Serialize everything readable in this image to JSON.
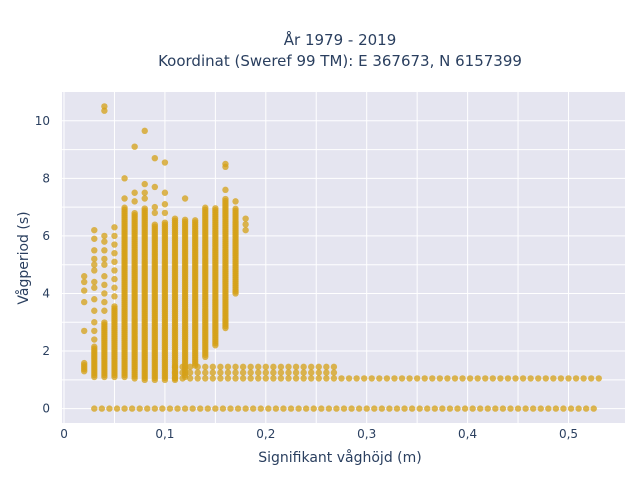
{
  "chart_data": {
    "type": "scatter",
    "title": [
      "År 1979 - 2019",
      "Koordinat (Sweref 99 TM): E 367673, N 6157399"
    ],
    "xlabel": "Signifikant våghöjd (m)",
    "ylabel": "Vågperiod (s)",
    "xlim": [
      -0.002,
      0.556
    ],
    "ylim": [
      -0.5,
      11
    ],
    "xticks": [
      0,
      0.1,
      0.2,
      0.3,
      0.4,
      0.5
    ],
    "xtick_labels": [
      "0",
      "0,1",
      "0,2",
      "0,3",
      "0,4",
      "0,5"
    ],
    "yticks": [
      0,
      2,
      4,
      6,
      8,
      10
    ],
    "ytick_labels": [
      "0",
      "2",
      "4",
      "6",
      "8",
      "10"
    ],
    "grid": true,
    "colors": {
      "background": "#E5E5F0",
      "grid": "#FFFFFF",
      "marker": "#D4A017"
    },
    "series": [
      {
        "marker_opacity": 0.75,
        "bands": [
          {
            "x": 0.02,
            "ymin": 1.3,
            "ymax": 1.6
          },
          {
            "x": 0.03,
            "ymin": 1.1,
            "ymax": 2.2
          },
          {
            "x": 0.04,
            "ymin": 1.1,
            "ymax": 3.0
          },
          {
            "x": 0.05,
            "ymin": 1.1,
            "ymax": 3.6
          },
          {
            "x": 0.06,
            "ymin": 1.1,
            "ymax": 7.0
          },
          {
            "x": 0.07,
            "ymin": 1.05,
            "ymax": 6.8
          },
          {
            "x": 0.08,
            "ymin": 1.0,
            "ymax": 7.0
          },
          {
            "x": 0.09,
            "ymin": 1.0,
            "ymax": 6.4
          },
          {
            "x": 0.1,
            "ymin": 1.0,
            "ymax": 6.5
          },
          {
            "x": 0.11,
            "ymin": 1.0,
            "ymax": 6.6
          },
          {
            "x": 0.12,
            "ymin": 1.1,
            "ymax": 6.6
          },
          {
            "x": 0.13,
            "ymin": 1.5,
            "ymax": 6.6
          },
          {
            "x": 0.14,
            "ymin": 1.8,
            "ymax": 7.0
          },
          {
            "x": 0.15,
            "ymin": 2.2,
            "ymax": 7.0
          },
          {
            "x": 0.16,
            "ymin": 2.8,
            "ymax": 7.3
          },
          {
            "x": 0.17,
            "ymin": 4.0,
            "ymax": 7.0
          }
        ],
        "points": [
          {
            "x": 0.02,
            "y": 4.6
          },
          {
            "x": 0.02,
            "y": 4.4
          },
          {
            "x": 0.02,
            "y": 4.1
          },
          {
            "x": 0.02,
            "y": 3.7
          },
          {
            "x": 0.02,
            "y": 2.7
          },
          {
            "x": 0.03,
            "y": 6.2
          },
          {
            "x": 0.03,
            "y": 5.9
          },
          {
            "x": 0.03,
            "y": 5.5
          },
          {
            "x": 0.03,
            "y": 5.2
          },
          {
            "x": 0.03,
            "y": 5.0
          },
          {
            "x": 0.03,
            "y": 4.8
          },
          {
            "x": 0.03,
            "y": 4.4
          },
          {
            "x": 0.03,
            "y": 4.2
          },
          {
            "x": 0.03,
            "y": 3.8
          },
          {
            "x": 0.03,
            "y": 3.4
          },
          {
            "x": 0.03,
            "y": 3.0
          },
          {
            "x": 0.03,
            "y": 2.7
          },
          {
            "x": 0.03,
            "y": 2.4
          },
          {
            "x": 0.04,
            "y": 6.0
          },
          {
            "x": 0.04,
            "y": 5.8
          },
          {
            "x": 0.04,
            "y": 5.5
          },
          {
            "x": 0.04,
            "y": 5.2
          },
          {
            "x": 0.04,
            "y": 5.0
          },
          {
            "x": 0.04,
            "y": 4.6
          },
          {
            "x": 0.04,
            "y": 4.3
          },
          {
            "x": 0.04,
            "y": 4.0
          },
          {
            "x": 0.04,
            "y": 3.7
          },
          {
            "x": 0.04,
            "y": 3.4
          },
          {
            "x": 0.05,
            "y": 6.3
          },
          {
            "x": 0.05,
            "y": 6.0
          },
          {
            "x": 0.05,
            "y": 5.7
          },
          {
            "x": 0.05,
            "y": 5.4
          },
          {
            "x": 0.05,
            "y": 5.1
          },
          {
            "x": 0.05,
            "y": 4.8
          },
          {
            "x": 0.05,
            "y": 4.5
          },
          {
            "x": 0.05,
            "y": 4.2
          },
          {
            "x": 0.05,
            "y": 3.9
          },
          {
            "x": 0.06,
            "y": 8.0
          },
          {
            "x": 0.06,
            "y": 7.3
          },
          {
            "x": 0.07,
            "y": 7.5
          },
          {
            "x": 0.07,
            "y": 7.2
          },
          {
            "x": 0.08,
            "y": 7.8
          },
          {
            "x": 0.08,
            "y": 7.5
          },
          {
            "x": 0.08,
            "y": 7.3
          },
          {
            "x": 0.09,
            "y": 7.7
          },
          {
            "x": 0.09,
            "y": 7.0
          },
          {
            "x": 0.09,
            "y": 6.8
          },
          {
            "x": 0.1,
            "y": 7.5
          },
          {
            "x": 0.1,
            "y": 7.1
          },
          {
            "x": 0.1,
            "y": 6.8
          },
          {
            "x": 0.12,
            "y": 7.3
          },
          {
            "x": 0.16,
            "y": 8.5
          },
          {
            "x": 0.16,
            "y": 8.4
          },
          {
            "x": 0.16,
            "y": 7.6
          },
          {
            "x": 0.17,
            "y": 7.2
          },
          {
            "x": 0.18,
            "y": 6.6
          },
          {
            "x": 0.18,
            "y": 6.4
          },
          {
            "x": 0.18,
            "y": 6.2
          },
          {
            "x": 0.04,
            "y": 10.5
          },
          {
            "x": 0.04,
            "y": 10.35
          },
          {
            "x": 0.08,
            "y": 9.65
          },
          {
            "x": 0.07,
            "y": 9.1
          },
          {
            "x": 0.09,
            "y": 8.7
          },
          {
            "x": 0.1,
            "y": 8.55
          }
        ],
        "plateau_rows": [
          {
            "y": 1.45,
            "xmin": 0.11,
            "xmax": 0.27,
            "step": 0.0075
          },
          {
            "y": 1.25,
            "xmin": 0.11,
            "xmax": 0.27,
            "step": 0.0075
          },
          {
            "y": 1.05,
            "xmin": 0.11,
            "xmax": 0.53,
            "step": 0.0075
          }
        ],
        "zero_row": {
          "y": 0,
          "xmin": 0.03,
          "xmax": 0.53,
          "step": 0.0075
        }
      }
    ]
  }
}
